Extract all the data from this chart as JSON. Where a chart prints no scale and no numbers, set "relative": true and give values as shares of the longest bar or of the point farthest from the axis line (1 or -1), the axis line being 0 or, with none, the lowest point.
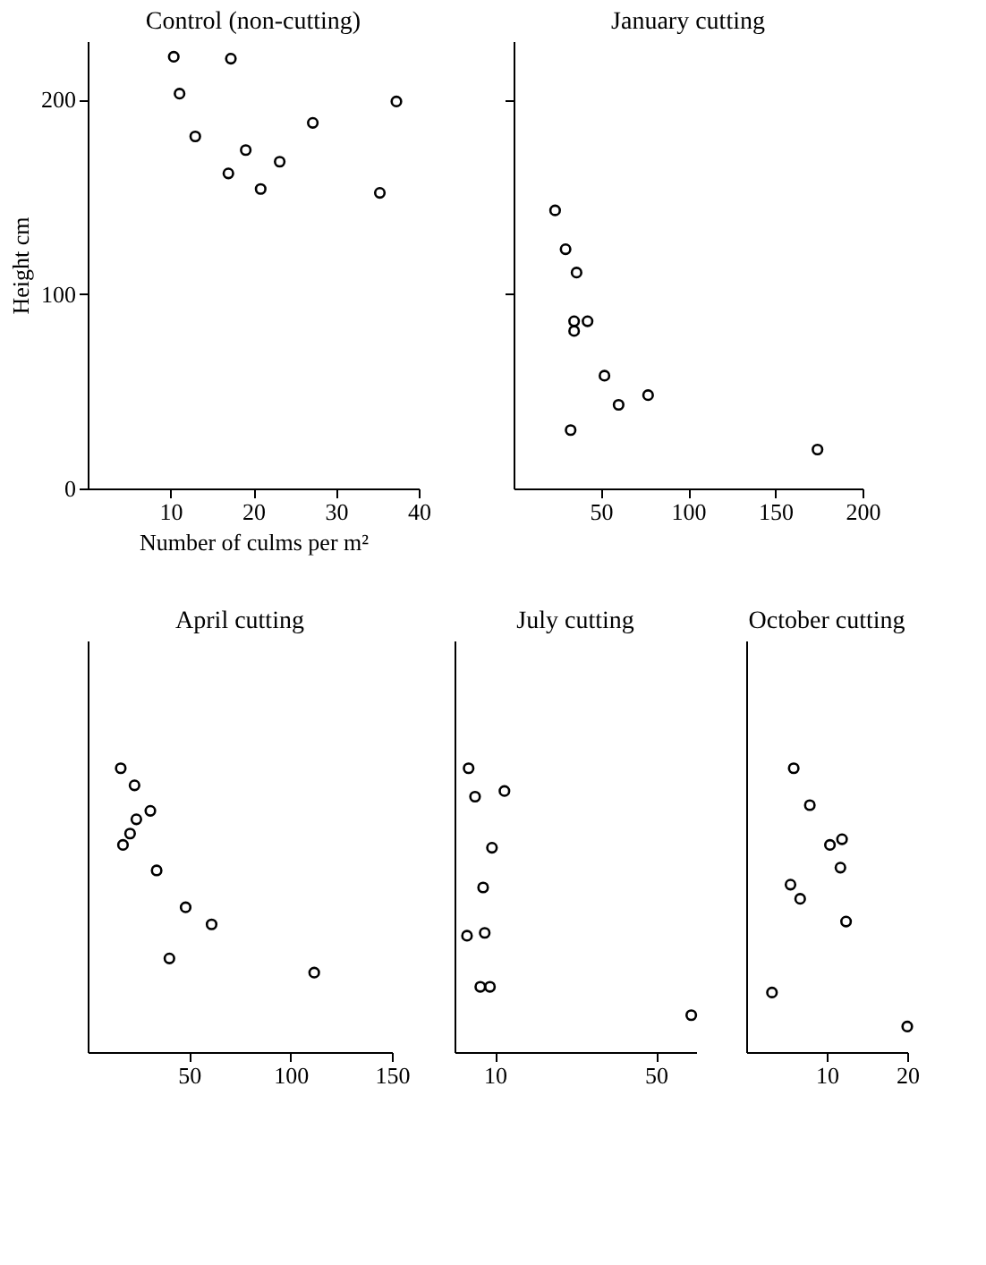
{
  "chart_data": [
    {
      "type": "scatter",
      "title": "Control (non-cutting)",
      "xlabel": "Number of culms per m²",
      "ylabel": "Height cm",
      "marker": "circle",
      "grid": false,
      "xlim": [
        0,
        40
      ],
      "xticks": [
        10,
        20,
        30,
        40
      ],
      "ylim": [
        0,
        230
      ],
      "yticks": [
        0,
        100,
        200
      ],
      "x": [
        10.4,
        11.1,
        17.3,
        13.0,
        17.0,
        19.1,
        20.9,
        23.2,
        27.2,
        35.3,
        37.3
      ],
      "series": [
        {
          "color": "#000000",
          "values": [
            222,
            203,
            221,
            181,
            162,
            174,
            154,
            168,
            188,
            152,
            199
          ]
        }
      ]
    },
    {
      "type": "scatter",
      "title": "January cutting",
      "marker": "circle",
      "grid": false,
      "tick_labels": "x",
      "xlim": [
        0,
        200
      ],
      "xticks": [
        50,
        100,
        150,
        200
      ],
      "ylim": [
        0,
        230
      ],
      "yticks": [
        {
          "value": 100,
          "label": null
        },
        {
          "value": 200,
          "label": null
        }
      ],
      "x": [
        23.8,
        29.8,
        36.1,
        34.7,
        42.4,
        34.7,
        52.1,
        60.2,
        77.1,
        32.7,
        174.2
      ],
      "series": [
        {
          "color": "#000000",
          "values": [
            143,
            123,
            111,
            86,
            86,
            81,
            58,
            43,
            48,
            30,
            20
          ]
        }
      ]
    },
    {
      "type": "scatter",
      "title": "April cutting",
      "marker": "circle",
      "grid": false,
      "tick_labels": "x",
      "relative": true,
      "xlim": [
        0,
        150
      ],
      "xticks": [
        50,
        100,
        150
      ],
      "x": [
        16.3,
        23.1,
        30.9,
        24.0,
        20.9,
        17.4,
        34.0,
        48.3,
        61.1,
        40.3,
        111.7
      ],
      "series": [
        {
          "color": "#000000",
          "values": [
            1,
            0.94,
            0.85,
            0.82,
            0.77,
            0.73,
            0.64,
            0.51,
            0.45,
            0.33,
            0.28
          ]
        }
      ]
    },
    {
      "type": "scatter",
      "title": "July cutting",
      "marker": "circle",
      "grid": false,
      "tick_labels": "x",
      "relative": true,
      "xlim": [
        0,
        60
      ],
      "xticks": [
        10,
        50
      ],
      "x": [
        3.5,
        5.1,
        12.4,
        9.3,
        7.1,
        3.1,
        7.5,
        6.4,
        8.8,
        58.8
      ],
      "series": [
        {
          "color": "#000000",
          "values": [
            1,
            0.9,
            0.92,
            0.72,
            0.58,
            0.41,
            0.42,
            0.23,
            0.23,
            0.13
          ]
        }
      ]
    },
    {
      "type": "scatter",
      "title": "October cutting",
      "marker": "circle",
      "grid": false,
      "tick_labels": "x",
      "relative": true,
      "xlim": [
        0,
        20
      ],
      "xticks": [
        10,
        20
      ],
      "x": [
        5.9,
        7.9,
        10.4,
        11.9,
        11.7,
        5.5,
        6.7,
        12.4,
        3.2,
        20.0
      ],
      "series": [
        {
          "color": "#000000",
          "values": [
            1,
            0.87,
            0.73,
            0.75,
            0.65,
            0.59,
            0.54,
            0.46,
            0.21,
            0.09
          ]
        }
      ]
    }
  ]
}
